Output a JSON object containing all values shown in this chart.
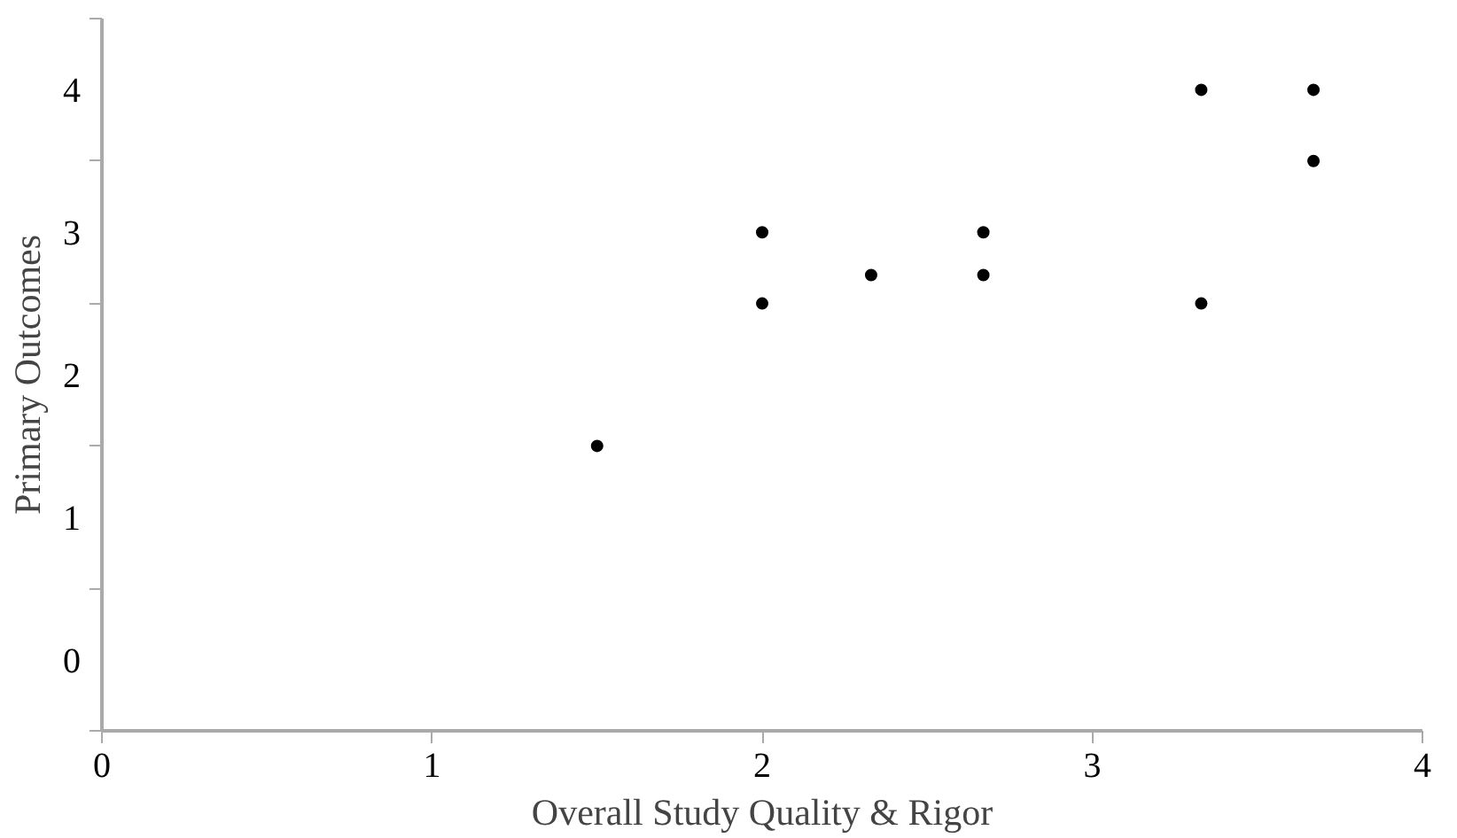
{
  "chart_data": {
    "type": "scatter",
    "xlabel": "Overall Study Quality & Rigor",
    "ylabel": "Primary Outcomes",
    "x": [
      1.5,
      2,
      2,
      2.33,
      2.67,
      2.67,
      3.33,
      3.33,
      3.67,
      3.67
    ],
    "values": [
      1.5,
      2.5,
      3.0,
      2.7,
      2.7,
      3.0,
      2.5,
      4.0,
      3.5,
      4.0
    ],
    "color": "#000000",
    "marker": "circle",
    "xlim": [
      0,
      4
    ],
    "xticks": [
      0,
      1,
      2,
      3,
      4
    ],
    "ylim": [
      -0.5,
      4.5
    ],
    "yticks": [
      {
        "value": -0.5,
        "label": null
      },
      0,
      {
        "value": 0.5,
        "label": null
      },
      1,
      {
        "value": 1.5,
        "label": null
      },
      2,
      {
        "value": 2.5,
        "label": null
      },
      3,
      {
        "value": 3.5,
        "label": null
      },
      4,
      {
        "value": 4.5,
        "label": null
      }
    ],
    "grid": false
  }
}
